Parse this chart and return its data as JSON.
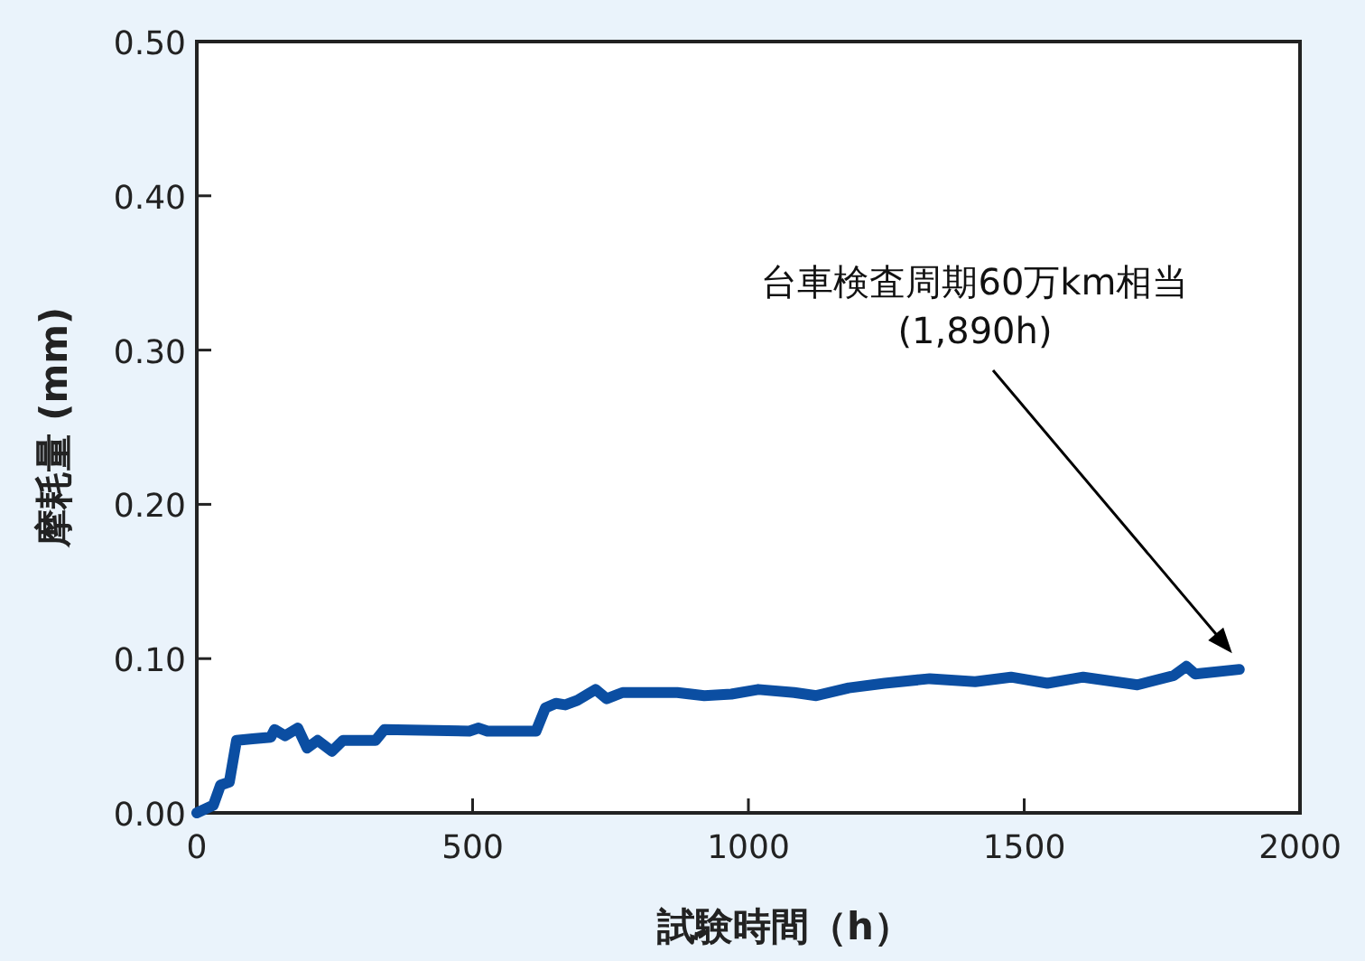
{
  "chart_data": {
    "type": "line",
    "xlabel": "試験時間（h）",
    "ylabel": "摩耗量 (mm)",
    "xlim": [
      0,
      2000
    ],
    "xticks": [
      0,
      500,
      1000,
      1500,
      2000
    ],
    "ylim": [
      0,
      0.5
    ],
    "yticks": [
      {
        "value": 0,
        "label": "0.00"
      },
      {
        "value": 0.1,
        "label": "0.10"
      },
      {
        "value": 0.2,
        "label": "0.20"
      },
      {
        "value": 0.3,
        "label": "0.30"
      },
      {
        "value": 0.4,
        "label": "0.40"
      },
      {
        "value": 0.5,
        "label": "0.50"
      }
    ],
    "grid": false,
    "series": [
      {
        "color": "#0b4ea2",
        "x": [
          0,
          30,
          43,
          59,
          72,
          101,
          134,
          141,
          160,
          183,
          200,
          219,
          245,
          265,
          324,
          340,
          494,
          511,
          527,
          615,
          632,
          651,
          668,
          690,
          723,
          743,
          772,
          871,
          920,
          969,
          1018,
          1083,
          1123,
          1182,
          1247,
          1329,
          1411,
          1476,
          1542,
          1607,
          1705,
          1771,
          1794,
          1810,
          1890
        ],
        "values": [
          0,
          0.005,
          0.018,
          0.02,
          0.047,
          0.048,
          0.049,
          0.054,
          0.05,
          0.055,
          0.042,
          0.047,
          0.04,
          0.047,
          0.047,
          0.054,
          0.053,
          0.055,
          0.053,
          0.053,
          0.068,
          0.071,
          0.07,
          0.073,
          0.08,
          0.074,
          0.078,
          0.078,
          0.076,
          0.077,
          0.08,
          0.078,
          0.076,
          0.081,
          0.084,
          0.087,
          0.085,
          0.088,
          0.084,
          0.088,
          0.083,
          0.089,
          0.095,
          0.09,
          0.093
        ]
      }
    ],
    "annotations": [
      "台車検査周期60万km相当\n(1,890h)"
    ]
  }
}
